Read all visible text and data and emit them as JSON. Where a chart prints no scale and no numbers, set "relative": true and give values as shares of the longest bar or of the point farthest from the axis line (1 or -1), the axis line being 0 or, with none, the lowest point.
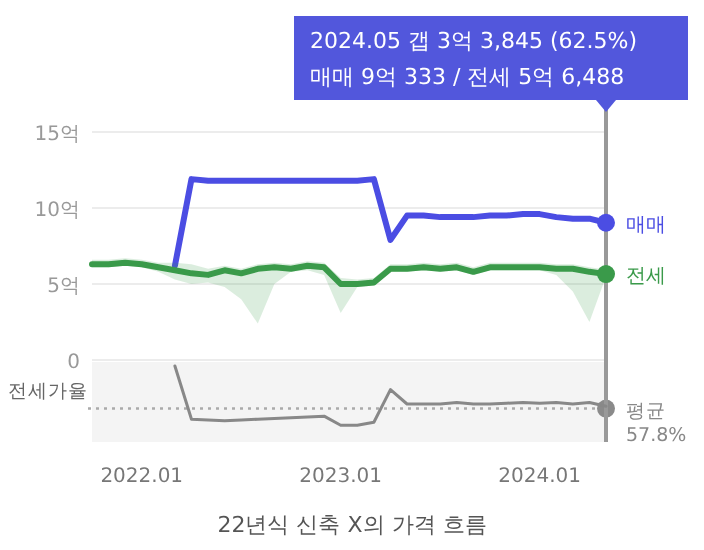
{
  "chart_data": [
    {
      "type": "line",
      "title": "22년식 신축 X의 가격 흐름",
      "x": [
        "2021-10",
        "2021-11",
        "2021-12",
        "2022-01",
        "2022-02",
        "2022-03",
        "2022-04",
        "2022-05",
        "2022-06",
        "2022-07",
        "2022-08",
        "2022-09",
        "2022-10",
        "2022-11",
        "2022-12",
        "2023-01",
        "2023-02",
        "2023-03",
        "2023-04",
        "2023-05",
        "2023-06",
        "2023-07",
        "2023-08",
        "2023-09",
        "2023-10",
        "2023-11",
        "2023-12",
        "2024-01",
        "2024-02",
        "2024-03",
        "2024-04",
        "2024-05"
      ],
      "series": [
        {
          "name": "매매",
          "color": "#4b4de3",
          "values": [
            null,
            null,
            null,
            null,
            null,
            6.2,
            11.9,
            11.8,
            11.8,
            11.8,
            11.8,
            11.8,
            11.8,
            11.8,
            11.8,
            11.8,
            11.8,
            11.9,
            7.9,
            9.5,
            9.5,
            9.4,
            9.4,
            9.4,
            9.5,
            9.5,
            9.6,
            9.6,
            9.4,
            9.3,
            9.3,
            9.03
          ]
        },
        {
          "name": "전세",
          "color": "#3a9a4a",
          "values": [
            6.3,
            6.3,
            6.4,
            6.3,
            6.1,
            5.9,
            5.7,
            5.6,
            5.9,
            5.7,
            6.0,
            6.1,
            6.0,
            6.2,
            6.1,
            5.0,
            5.0,
            5.1,
            6.0,
            6.0,
            6.1,
            6.0,
            6.1,
            5.8,
            6.1,
            6.1,
            6.1,
            6.1,
            6.0,
            6.0,
            5.8,
            5.65
          ],
          "lower": [
            6.1,
            6.1,
            6.2,
            6.1,
            5.8,
            5.3,
            5.0,
            5.1,
            4.8,
            4.0,
            2.4,
            5.0,
            5.8,
            5.9,
            5.6,
            3.1,
            4.8,
            4.9,
            5.8,
            5.8,
            5.9,
            5.8,
            5.9,
            5.6,
            5.9,
            5.9,
            5.9,
            5.9,
            5.6,
            4.5,
            2.5,
            5.5
          ],
          "upper": [
            6.6,
            6.6,
            6.7,
            6.6,
            6.4,
            6.4,
            6.3,
            6.0,
            6.2,
            6.0,
            6.3,
            6.4,
            6.3,
            6.5,
            6.4,
            5.4,
            5.3,
            5.4,
            6.3,
            6.3,
            6.4,
            6.3,
            6.4,
            6.1,
            6.4,
            6.4,
            6.4,
            6.4,
            6.3,
            6.3,
            6.1,
            5.95
          ]
        }
      ],
      "xlim": [
        "2021-10",
        "2024-05"
      ],
      "ylim": [
        0,
        15
      ],
      "yticks": [
        {
          "value": 0,
          "label": "0"
        },
        {
          "value": 5,
          "label": "5억"
        },
        {
          "value": 10,
          "label": "10억"
        },
        {
          "value": 15,
          "label": "15억"
        }
      ],
      "grid": "y",
      "tick_labels": "y",
      "ref_lines": [
        {
          "axis": "x",
          "value": "2024-05",
          "color": "#999999"
        }
      ],
      "annotations": [
        "2024.05  갭 3억 3,845 (62.5%)",
        "매매 9억 333 / 전세 5억 6,488"
      ]
    },
    {
      "type": "line",
      "relative": true,
      "ylabel": "전세가율",
      "series": [
        {
          "color": "#888888",
          "x": [
            "2022-03",
            "2022-04",
            "2022-05",
            "2022-06",
            "2022-07",
            "2022-08",
            "2022-09",
            "2022-10",
            "2022-11",
            "2022-12",
            "2023-01",
            "2023-02",
            "2023-03",
            "2023-04",
            "2023-05",
            "2023-06",
            "2023-07",
            "2023-08",
            "2023-09",
            "2023-10",
            "2023-11",
            "2023-12",
            "2024-01",
            "2024-02",
            "2024-03",
            "2024-04",
            "2024-05"
          ],
          "values": [
            1.0,
            0.3,
            0.29,
            0.28,
            0.29,
            0.3,
            0.31,
            0.32,
            0.33,
            0.34,
            0.22,
            0.22,
            0.26,
            0.69,
            0.5,
            0.5,
            0.5,
            0.52,
            0.5,
            0.5,
            0.51,
            0.52,
            0.51,
            0.52,
            0.5,
            0.52,
            0.47
          ]
        }
      ],
      "xlim": [
        "2021-10",
        "2024-05"
      ],
      "xticks": [
        {
          "value": "2022-01",
          "label": "2022.01"
        },
        {
          "value": "2023-01",
          "label": "2023.01"
        },
        {
          "value": "2024-01",
          "label": "2024.01"
        }
      ],
      "tick_labels": "x",
      "ref_lines": [
        {
          "axis": "y",
          "value": 0.44,
          "label": "평균 57.8%",
          "color": "#aaaaaa",
          "line_style": "dotted"
        },
        {
          "axis": "x",
          "value": "2024-05",
          "color": "#999999"
        }
      ]
    }
  ]
}
